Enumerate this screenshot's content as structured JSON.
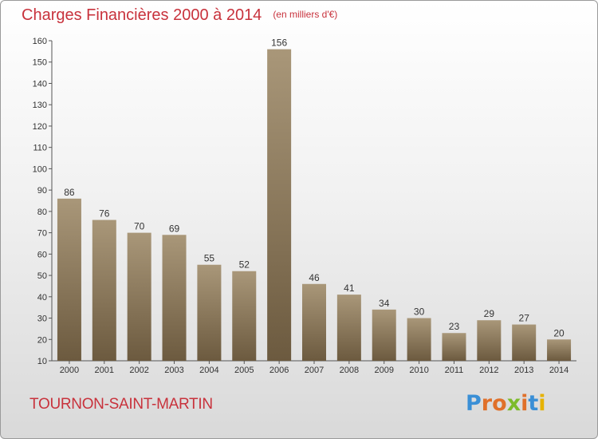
{
  "header": {
    "title": "Charges Financières 2000 à 2014",
    "unit": "(en milliers d'€)"
  },
  "footer": {
    "commune": "TOURNON-SAINT-MARTIN",
    "logo_letters": [
      {
        "ch": "P",
        "color": "#3a8fd6"
      },
      {
        "ch": "r",
        "color": "#e0702a"
      },
      {
        "ch": "o",
        "color": "#e0702a"
      },
      {
        "ch": "x",
        "color": "#7dbb2a"
      },
      {
        "ch": "i",
        "color": "#e0702a"
      },
      {
        "ch": "t",
        "color": "#3a8fd6"
      },
      {
        "ch": "i",
        "color": "#e6b200"
      }
    ]
  },
  "colors": {
    "bar_top": "#a99779",
    "bar_bottom": "#6c5a3f",
    "accent": "#c8323c"
  },
  "chart_data": {
    "type": "bar",
    "title": "Charges Financières 2000 à 2014",
    "subtitle": "(en milliers d'€)",
    "categories": [
      "2000",
      "2001",
      "2002",
      "2003",
      "2004",
      "2005",
      "2006",
      "2007",
      "2008",
      "2009",
      "2010",
      "2011",
      "2012",
      "2013",
      "2014"
    ],
    "values": [
      86,
      76,
      70,
      69,
      55,
      52,
      156,
      46,
      41,
      34,
      30,
      23,
      29,
      27,
      20
    ],
    "ylim": [
      10,
      160
    ],
    "yticks": [
      10,
      20,
      30,
      40,
      50,
      60,
      70,
      80,
      90,
      100,
      110,
      120,
      130,
      140,
      150,
      160
    ],
    "grid": false
  }
}
